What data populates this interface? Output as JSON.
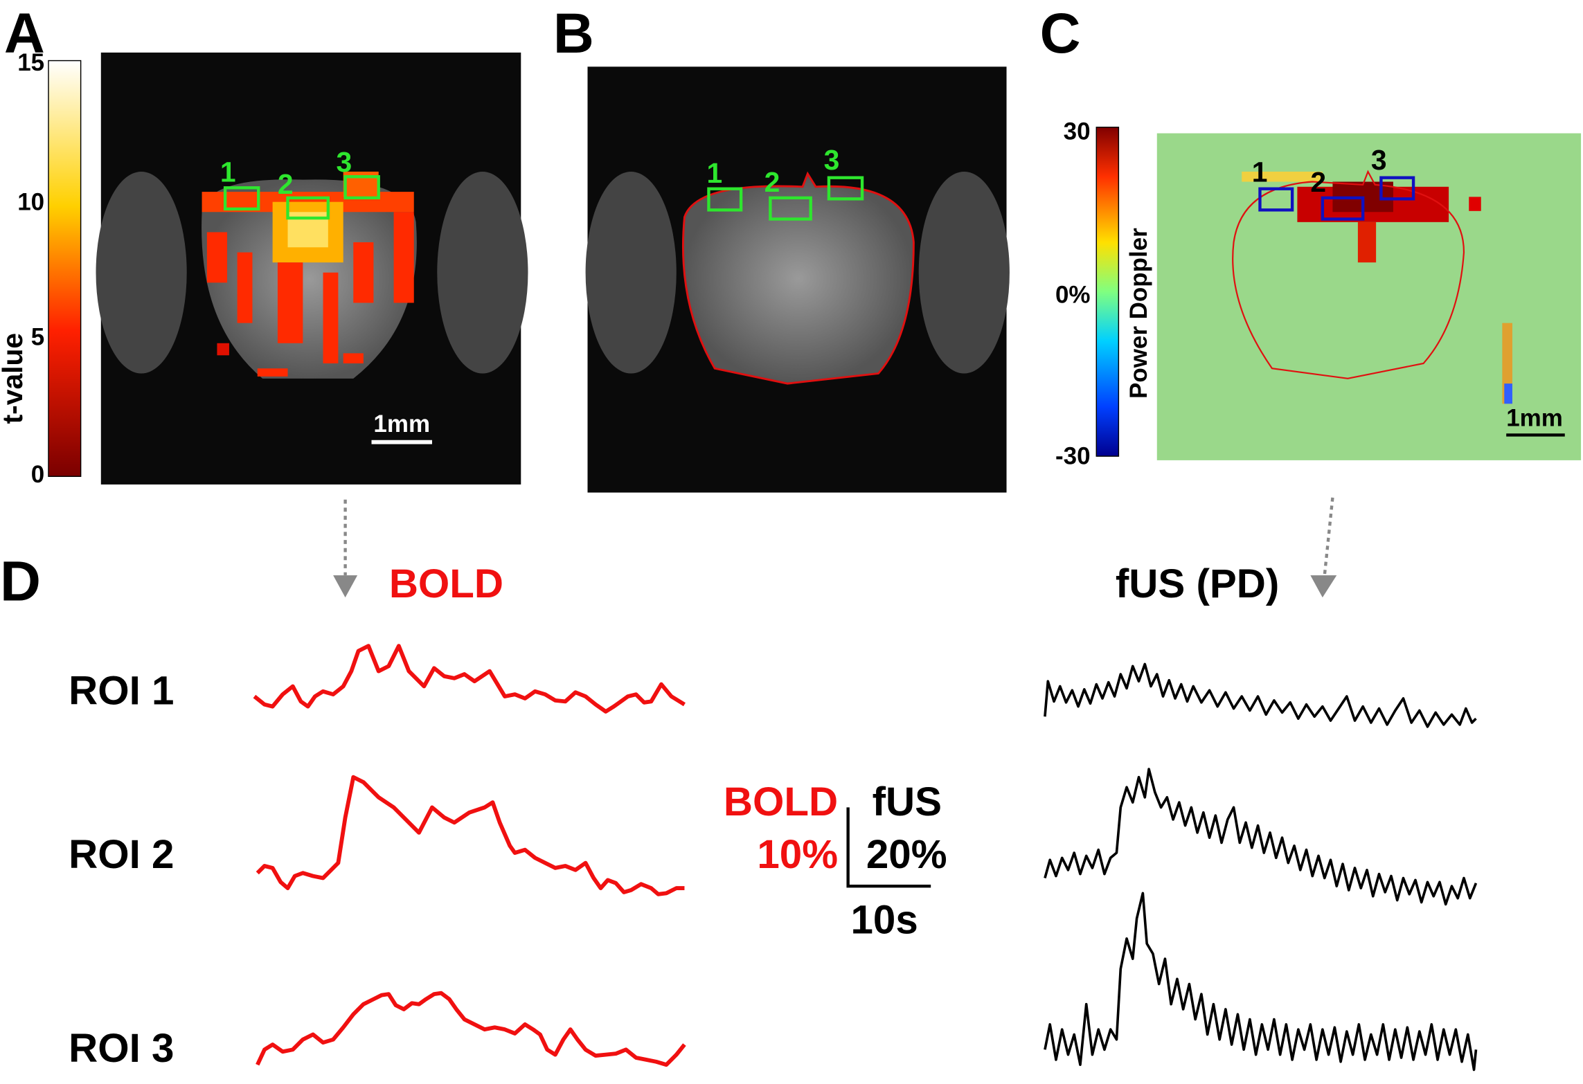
{
  "panels": {
    "A": {
      "label": "A",
      "colorbar": {
        "title": "t-value",
        "ticks": [
          "15",
          "10",
          "5",
          "0"
        ]
      },
      "rois": [
        "1",
        "2",
        "3"
      ],
      "scale_bar": "1mm"
    },
    "B": {
      "label": "B",
      "rois": [
        "1",
        "2",
        "3"
      ]
    },
    "C": {
      "label": "C",
      "colorbar": {
        "title": "Power Doppler",
        "ticks": [
          "30",
          "0%",
          "-30"
        ]
      },
      "rois": [
        "1",
        "2",
        "3"
      ],
      "scale_bar": "1mm"
    },
    "D": {
      "label": "D",
      "bold_title": "BOLD",
      "fus_title": "fUS (PD)",
      "roi_labels": [
        "ROI 1",
        "ROI 2",
        "ROI 3"
      ],
      "scale": {
        "bold_label": "BOLD",
        "bold_value": "10%",
        "fus_label": "fUS",
        "fus_value": "20%",
        "time": "10s"
      }
    }
  }
}
